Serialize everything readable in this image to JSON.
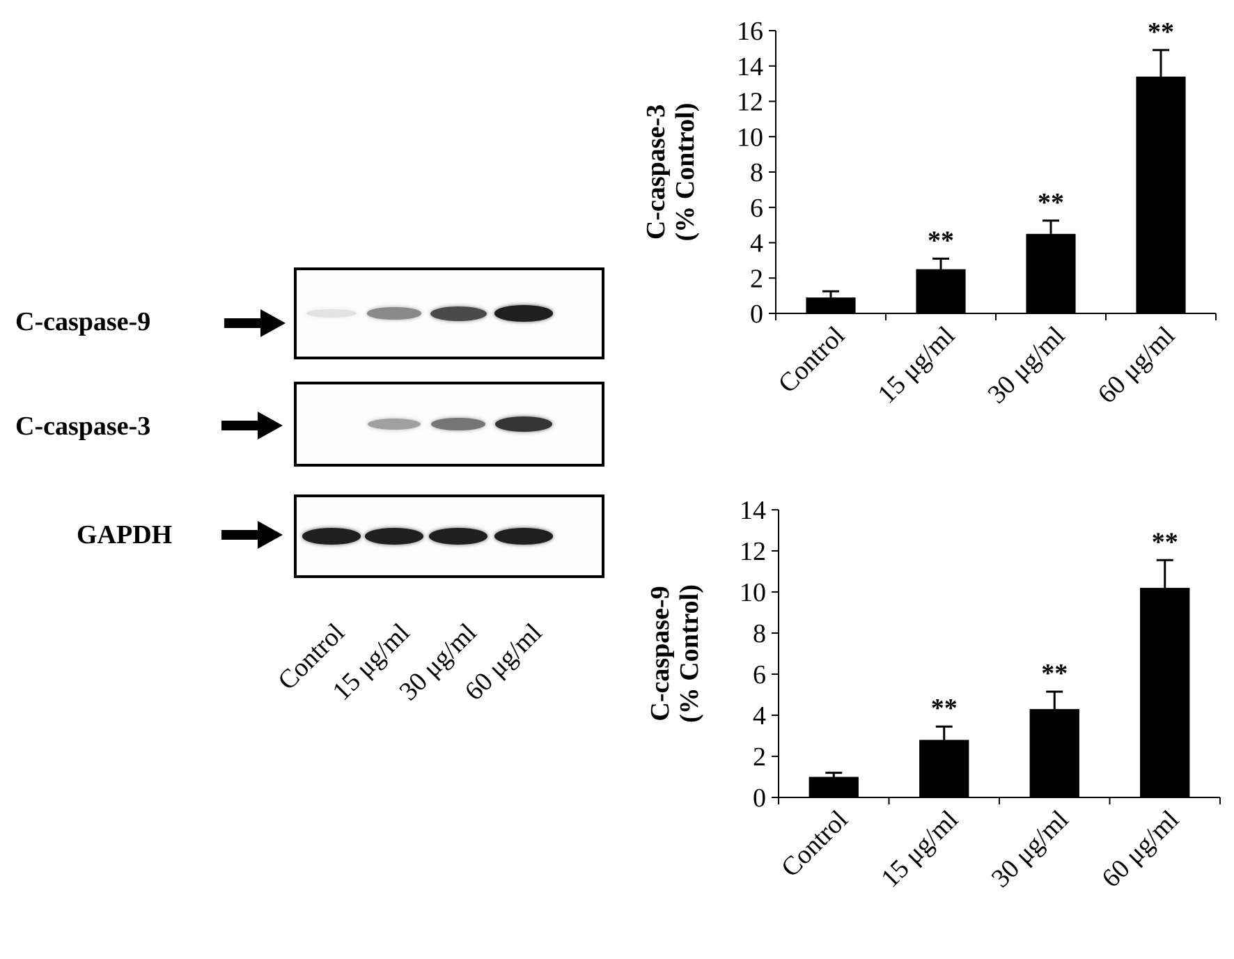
{
  "blot": {
    "rows": [
      {
        "label": "C-caspase-9",
        "intensities": [
          0.04,
          0.45,
          0.75,
          0.95
        ]
      },
      {
        "label": "C-caspase-3",
        "intensities": [
          0.0,
          0.35,
          0.55,
          0.85
        ]
      },
      {
        "label": "GAPDH",
        "intensities": [
          0.95,
          0.95,
          0.95,
          0.95
        ]
      }
    ],
    "lanes": [
      "Control",
      "15 μg/ml",
      "30 μg/ml",
      "60 μg/ml"
    ]
  },
  "chart_data": [
    {
      "type": "bar",
      "ylabel_line1": "C-caspase-3",
      "ylabel_line2": "(% Control)",
      "categories": [
        "Control",
        "15 μg/ml",
        "30 μg/ml",
        "60 μg/ml"
      ],
      "values": [
        0.9,
        2.5,
        4.5,
        13.4
      ],
      "errors": [
        0.35,
        0.6,
        0.75,
        1.5
      ],
      "annotations": [
        "",
        "**",
        "**",
        "**"
      ],
      "ylim": [
        0,
        16
      ],
      "yticks": [
        0,
        2,
        4,
        6,
        8,
        10,
        12,
        14,
        16
      ],
      "bar_color": "#000000"
    },
    {
      "type": "bar",
      "ylabel_line1": "C-caspase-9",
      "ylabel_line2": "(% Control)",
      "categories": [
        "Control",
        "15 μg/ml",
        "30 μg/ml",
        "60 μg/ml"
      ],
      "values": [
        1.0,
        2.8,
        4.3,
        10.2
      ],
      "errors": [
        0.2,
        0.65,
        0.85,
        1.35
      ],
      "annotations": [
        "",
        "**",
        "**",
        "**"
      ],
      "ylim": [
        0,
        14
      ],
      "yticks": [
        0,
        2,
        4,
        6,
        8,
        10,
        12,
        14
      ],
      "bar_color": "#000000"
    }
  ]
}
